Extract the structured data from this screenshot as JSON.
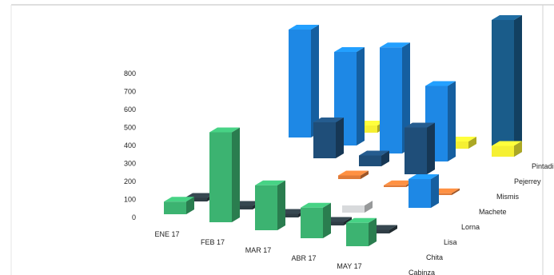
{
  "chart_data": {
    "type": "bar",
    "variant": "3d-column",
    "title": "",
    "xlabel": "",
    "ylabel": "",
    "ylim": [
      0,
      800
    ],
    "yticks": [
      "0",
      "100",
      "200",
      "300",
      "400",
      "500",
      "600",
      "700",
      "800"
    ],
    "categories": [
      "ENE 17",
      "FEB 17",
      "MAR 17",
      "ABR 17",
      "MAY 17"
    ],
    "series": [
      {
        "name": "Cabinza",
        "color": "#3cb371",
        "values": [
          70,
          500,
          250,
          170,
          130
        ]
      },
      {
        "name": "Chita",
        "color": "#2f3d45",
        "values": [
          20,
          20,
          20,
          20,
          20
        ]
      },
      {
        "name": "Lisa",
        "color": "#d8dadc",
        "values": [
          0,
          0,
          0,
          40,
          0
        ]
      },
      {
        "name": "Lorna",
        "color": "#1e88e5",
        "values": [
          0,
          0,
          0,
          0,
          160
        ]
      },
      {
        "name": "Machete",
        "color": "#e07b39",
        "values": [
          0,
          0,
          0,
          0,
          10
        ]
      },
      {
        "name": "Mismis",
        "color": "#1f4e79",
        "values": [
          0,
          0,
          60,
          80,
          0
        ]
      },
      {
        "name": "Pejerrey",
        "color": "#1e88e5",
        "values": [
          600,
          520,
          590,
          420,
          0
        ]
      },
      {
        "name": "Pintadilla",
        "color": "#1a5c8a",
        "values": [
          0,
          0,
          0,
          0,
          760
        ]
      }
    ],
    "extra_bars": [
      {
        "series": "Mismis",
        "category": "FEB 17",
        "value": 200,
        "color": "#1f4e79"
      },
      {
        "series": "Mismis",
        "category": "ABR 17",
        "value": 260,
        "color": "#1f4e79"
      },
      {
        "series": "Machete",
        "category": "MAR 17",
        "value": 20,
        "color": "#e07b39"
      },
      {
        "series": "Pintadilla",
        "category": "FEB 17",
        "value": 40,
        "color": "#f5f033"
      },
      {
        "series": "Pintadilla",
        "category": "ABR 17",
        "value": 40,
        "color": "#f5f033"
      },
      {
        "series": "Pintadilla",
        "category": "MAY 17",
        "value": 60,
        "color": "#f5f033"
      },
      {
        "series": "Machete",
        "category": "ABR 17",
        "value": 10,
        "color": "#e07b39"
      }
    ],
    "grid": false,
    "legend": "none"
  }
}
